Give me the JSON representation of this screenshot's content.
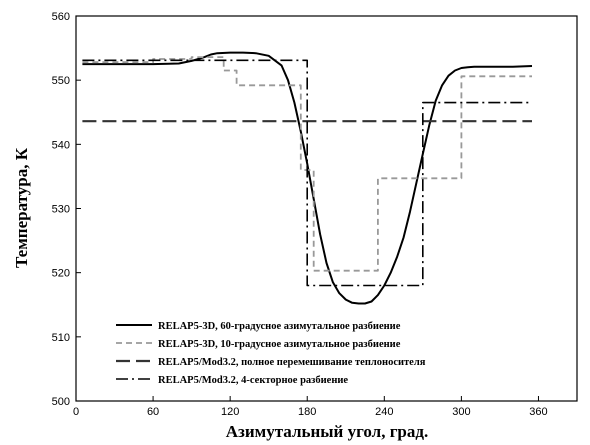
{
  "chart_data": {
    "type": "line",
    "title": "",
    "xlabel": "Азимутальный угол, град.",
    "ylabel": "Температура, К",
    "xlim": [
      0,
      390
    ],
    "ylim": [
      500,
      560
    ],
    "xticks": [
      0,
      60,
      120,
      180,
      240,
      300,
      360
    ],
    "yticks": [
      500,
      510,
      520,
      530,
      540,
      550,
      560
    ],
    "grid": false,
    "legend_position": "bottom-center",
    "series": [
      {
        "name": "RELAP5-3D, 60-градусное азимутальное разбиение",
        "style": "solid",
        "color": "#000000",
        "x": [
          5,
          30,
          60,
          80,
          90,
          100,
          105,
          110,
          120,
          130,
          140,
          150,
          160,
          165,
          170,
          175,
          180,
          185,
          190,
          195,
          200,
          205,
          210,
          215,
          220,
          225,
          230,
          235,
          240,
          245,
          250,
          255,
          260,
          265,
          270,
          275,
          280,
          285,
          290,
          295,
          300,
          305,
          310,
          320,
          330,
          340,
          355
        ],
        "y": [
          552.5,
          552.5,
          552.5,
          552.6,
          553.0,
          553.6,
          554.0,
          554.2,
          554.3,
          554.3,
          554.2,
          553.8,
          552.3,
          550.0,
          546.5,
          542.0,
          537.0,
          531.5,
          526.0,
          521.5,
          518.5,
          516.8,
          515.8,
          515.3,
          515.2,
          515.2,
          515.5,
          516.5,
          518.0,
          520.0,
          522.5,
          525.5,
          529.5,
          534.0,
          538.5,
          543.0,
          546.8,
          549.2,
          550.7,
          551.5,
          551.9,
          552.0,
          552.1,
          552.1,
          552.1,
          552.1,
          552.2
        ]
      },
      {
        "name": "RELAP5-3D, 10-градусное азимутальное разбиение",
        "style": "dashed",
        "color": "#999999",
        "x": [
          5,
          60,
          60,
          90,
          90,
          115,
          115,
          125,
          125,
          175,
          175,
          185,
          185,
          235,
          235,
          250,
          250,
          300,
          300,
          355
        ],
        "y": [
          552.8,
          552.8,
          553.3,
          553.3,
          553.6,
          553.6,
          551.5,
          551.5,
          549.2,
          549.2,
          536.0,
          536.0,
          520.3,
          520.3,
          534.7,
          534.7,
          534.7,
          534.7,
          550.6,
          550.6
        ]
      },
      {
        "name": "RELAP5/Mod3.2, полное перемешивание теплоносителя",
        "style": "long-dash",
        "color": "#333333",
        "x": [
          5,
          355
        ],
        "y": [
          543.6,
          543.6
        ]
      },
      {
        "name": "RELAP5/Mod3.2, 4-секторное разбиение",
        "style": "dash-dot",
        "color": "#000000",
        "x": [
          5,
          180,
          180,
          270,
          270,
          355
        ],
        "y": [
          553.1,
          553.1,
          518.0,
          518.0,
          546.5,
          546.5
        ]
      }
    ]
  }
}
